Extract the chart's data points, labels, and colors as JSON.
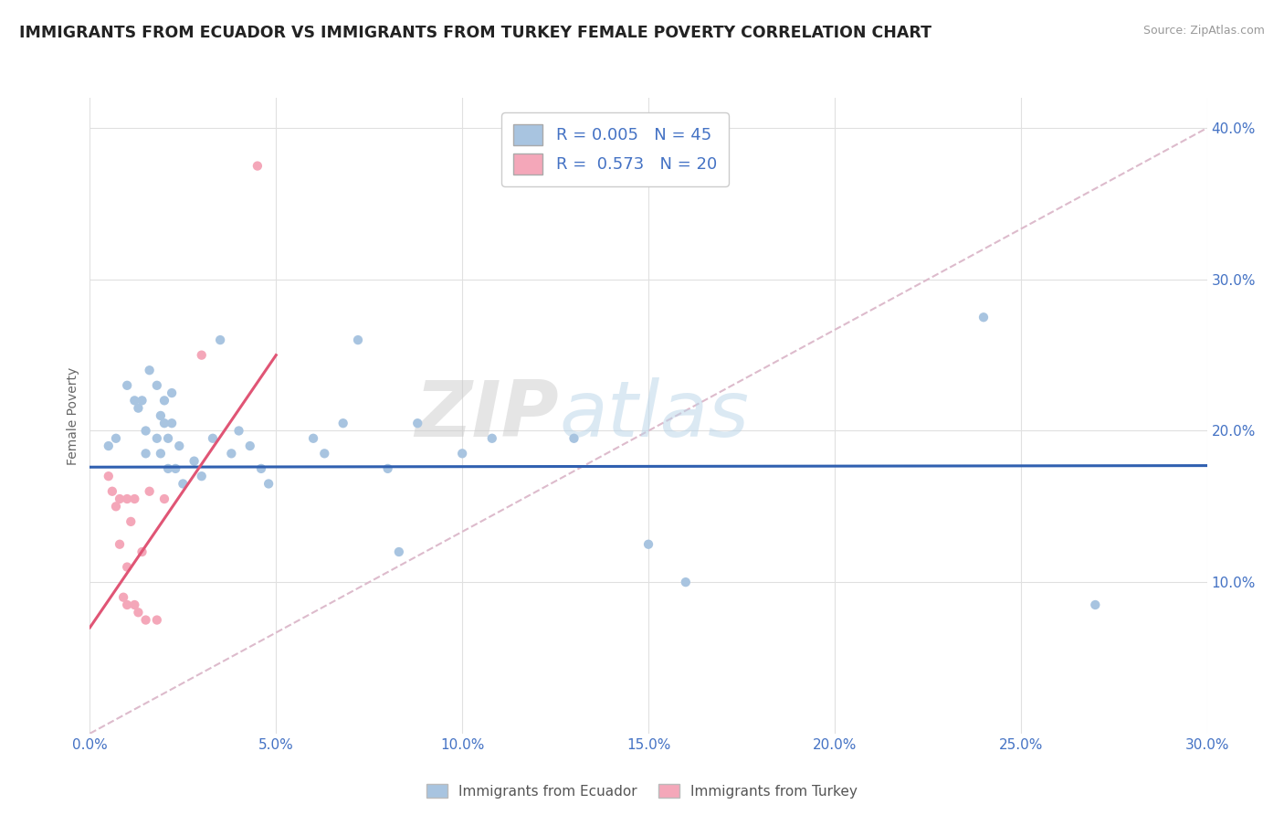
{
  "title": "IMMIGRANTS FROM ECUADOR VS IMMIGRANTS FROM TURKEY FEMALE POVERTY CORRELATION CHART",
  "source": "Source: ZipAtlas.com",
  "ylabel": "Female Poverty",
  "xlim": [
    0.0,
    0.3
  ],
  "ylim": [
    0.0,
    0.42
  ],
  "xtick_values": [
    0.0,
    0.05,
    0.1,
    0.15,
    0.2,
    0.25,
    0.3
  ],
  "ytick_values": [
    0.1,
    0.2,
    0.3,
    0.4
  ],
  "ecuador_color": "#a8c4e0",
  "turkey_color": "#f4a7b9",
  "ecuador_R": 0.005,
  "ecuador_N": 45,
  "turkey_R": 0.573,
  "turkey_N": 20,
  "ecuador_line_color": "#3060b0",
  "turkey_line_color": "#e05575",
  "watermark_zip": "ZIP",
  "watermark_atlas": "atlas",
  "ecuador_scatter": [
    [
      0.005,
      0.19
    ],
    [
      0.007,
      0.195
    ],
    [
      0.01,
      0.23
    ],
    [
      0.012,
      0.22
    ],
    [
      0.013,
      0.215
    ],
    [
      0.014,
      0.22
    ],
    [
      0.015,
      0.185
    ],
    [
      0.015,
      0.2
    ],
    [
      0.016,
      0.24
    ],
    [
      0.018,
      0.23
    ],
    [
      0.018,
      0.195
    ],
    [
      0.019,
      0.21
    ],
    [
      0.019,
      0.185
    ],
    [
      0.02,
      0.205
    ],
    [
      0.02,
      0.22
    ],
    [
      0.021,
      0.195
    ],
    [
      0.021,
      0.175
    ],
    [
      0.022,
      0.225
    ],
    [
      0.022,
      0.205
    ],
    [
      0.023,
      0.175
    ],
    [
      0.024,
      0.19
    ],
    [
      0.025,
      0.165
    ],
    [
      0.028,
      0.18
    ],
    [
      0.03,
      0.17
    ],
    [
      0.033,
      0.195
    ],
    [
      0.035,
      0.26
    ],
    [
      0.038,
      0.185
    ],
    [
      0.04,
      0.2
    ],
    [
      0.043,
      0.19
    ],
    [
      0.046,
      0.175
    ],
    [
      0.048,
      0.165
    ],
    [
      0.06,
      0.195
    ],
    [
      0.063,
      0.185
    ],
    [
      0.068,
      0.205
    ],
    [
      0.072,
      0.26
    ],
    [
      0.08,
      0.175
    ],
    [
      0.083,
      0.12
    ],
    [
      0.088,
      0.205
    ],
    [
      0.1,
      0.185
    ],
    [
      0.108,
      0.195
    ],
    [
      0.13,
      0.195
    ],
    [
      0.15,
      0.125
    ],
    [
      0.16,
      0.1
    ],
    [
      0.24,
      0.275
    ],
    [
      0.27,
      0.085
    ]
  ],
  "turkey_scatter": [
    [
      0.005,
      0.17
    ],
    [
      0.006,
      0.16
    ],
    [
      0.007,
      0.15
    ],
    [
      0.008,
      0.155
    ],
    [
      0.008,
      0.125
    ],
    [
      0.009,
      0.09
    ],
    [
      0.01,
      0.155
    ],
    [
      0.01,
      0.11
    ],
    [
      0.01,
      0.085
    ],
    [
      0.011,
      0.14
    ],
    [
      0.012,
      0.155
    ],
    [
      0.012,
      0.085
    ],
    [
      0.013,
      0.08
    ],
    [
      0.014,
      0.12
    ],
    [
      0.015,
      0.075
    ],
    [
      0.016,
      0.16
    ],
    [
      0.018,
      0.075
    ],
    [
      0.02,
      0.155
    ],
    [
      0.03,
      0.25
    ],
    [
      0.045,
      0.375
    ]
  ]
}
